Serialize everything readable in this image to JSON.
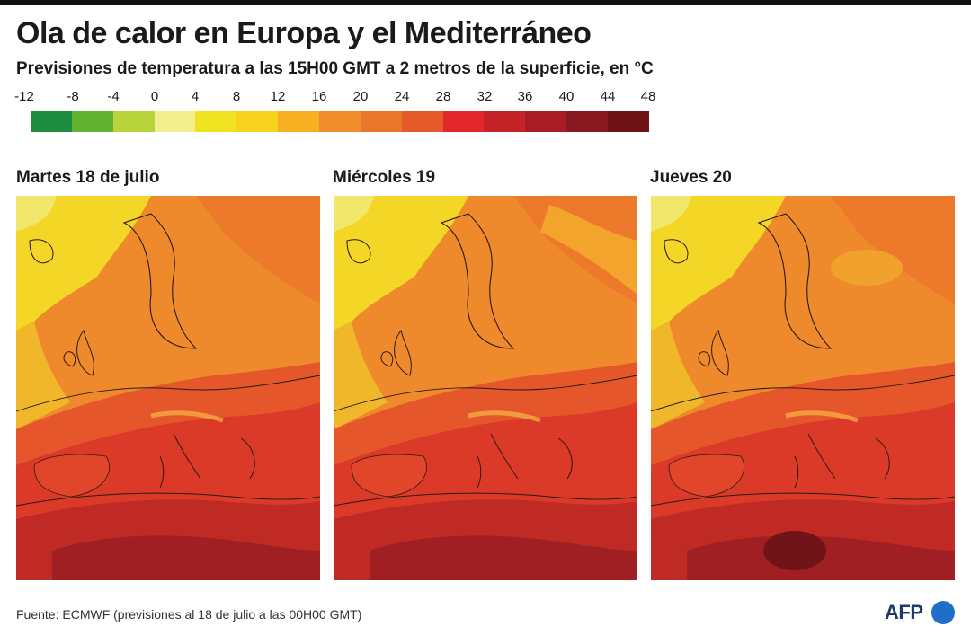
{
  "title": "Ola de calor en Europa y el Mediterráneo",
  "subtitle": "Previsiones de temperatura a las 15H00 GMT a 2 metros de la superficie, en °C",
  "legend": {
    "ticks": [
      "-12",
      "-8",
      "-4",
      "0",
      "4",
      "8",
      "12",
      "16",
      "20",
      "24",
      "28",
      "32",
      "36",
      "40",
      "44",
      "48"
    ],
    "colors": [
      "#1e8c3f",
      "#62b232",
      "#b8d43a",
      "#f3ef8e",
      "#f0e321",
      "#f8d21e",
      "#f8b023",
      "#f18d2b",
      "#e8762b",
      "#e65a2a",
      "#e2282a",
      "#c32326",
      "#a81c25",
      "#8a1820",
      "#6c1217"
    ]
  },
  "panels": [
    {
      "label": "Martes 18 de julio"
    },
    {
      "label": "Miércoles 19"
    },
    {
      "label": "Jueves 20"
    }
  ],
  "source": "Fuente: ECMWF (previsiones al 18 de julio a las 00H00 GMT)",
  "logo": {
    "text": "AFP"
  }
}
